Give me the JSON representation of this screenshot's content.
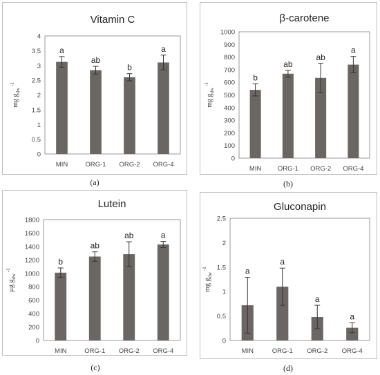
{
  "chart_data": [
    {
      "type": "bar",
      "panel_label": "(a)",
      "title": "Vitamin C",
      "ylabel": "mg g_dw -1",
      "ylabel_parts": {
        "base": "mg g",
        "sub": "dw",
        "sup": " -1"
      },
      "categories": [
        "MIN",
        "ORG-1",
        "ORG-2",
        "ORG-4"
      ],
      "values": [
        3.12,
        2.84,
        2.6,
        3.1
      ],
      "errors": [
        0.18,
        0.13,
        0.12,
        0.25
      ],
      "significance_letters": [
        "a",
        "ab",
        "b",
        "a"
      ],
      "ylim": [
        0,
        4
      ],
      "yticks": [
        0,
        0.5,
        1,
        1.5,
        2,
        2.5,
        3,
        3.5,
        4
      ],
      "ytick_labels": [
        "0",
        "0.5",
        "1",
        "1.5",
        "2",
        "2.5",
        "3",
        "3.5",
        "4"
      ],
      "grid": false,
      "bar_color": "#6b6663"
    },
    {
      "type": "bar",
      "panel_label": "(b)",
      "title": "β-carotene",
      "ylabel": "mg g_dw -1",
      "ylabel_parts": {
        "base": "mg g",
        "sub": "dw",
        "sup": " -1"
      },
      "categories": [
        "MIN",
        "ORG-1",
        "ORG-2",
        "ORG-4"
      ],
      "values": [
        540,
        668,
        635,
        740
      ],
      "errors": [
        48,
        27,
        115,
        65
      ],
      "significance_letters": [
        "b",
        "ab",
        "ab",
        "a"
      ],
      "ylim": [
        0,
        1000
      ],
      "yticks": [
        0,
        100,
        200,
        300,
        400,
        500,
        600,
        700,
        800,
        900,
        1000
      ],
      "ytick_labels": [
        "0",
        "100",
        "200",
        "300",
        "400",
        "500",
        "600",
        "700",
        "800",
        "900",
        "1000"
      ],
      "grid": false,
      "bar_color": "#6b6663"
    },
    {
      "type": "bar",
      "panel_label": "(c)",
      "title": "Lutein",
      "ylabel": "µg g_dw -1",
      "ylabel_parts": {
        "base": "µg g",
        "sub": "dw",
        "sup": " -1"
      },
      "categories": [
        "MIN",
        "ORG-1",
        "ORG-2",
        "ORG-4"
      ],
      "values": [
        1010,
        1250,
        1285,
        1430
      ],
      "errors": [
        70,
        70,
        185,
        45
      ],
      "significance_letters": [
        "b",
        "ab",
        "ab",
        "a"
      ],
      "ylim": [
        0,
        1800
      ],
      "yticks": [
        0,
        200,
        400,
        600,
        800,
        1000,
        1200,
        1400,
        1600,
        1800
      ],
      "ytick_labels": [
        "0",
        "200",
        "400",
        "600",
        "800",
        "1000",
        "1200",
        "1400",
        "1600",
        "1800"
      ],
      "grid": false,
      "bar_color": "#6b6663"
    },
    {
      "type": "bar",
      "panel_label": "(d)",
      "title": "Gluconapin",
      "ylabel": "mg g_dw -1",
      "ylabel_parts": {
        "base": "mg g",
        "sub": "dw",
        "sup": " -1"
      },
      "categories": [
        "MIN",
        "ORG-1",
        "ORG-2",
        "ORG-4"
      ],
      "values": [
        0.72,
        1.1,
        0.48,
        0.26
      ],
      "errors": [
        0.57,
        0.38,
        0.24,
        0.1
      ],
      "significance_letters": [
        "a",
        "a",
        "a",
        "a"
      ],
      "ylim": [
        0,
        2.5
      ],
      "yticks": [
        0,
        0.5,
        1,
        1.5,
        2,
        2.5
      ],
      "ytick_labels": [
        "0",
        "0.5",
        "1",
        "1.5",
        "2",
        "2.5"
      ],
      "grid": false,
      "bar_color": "#6b6663"
    }
  ]
}
